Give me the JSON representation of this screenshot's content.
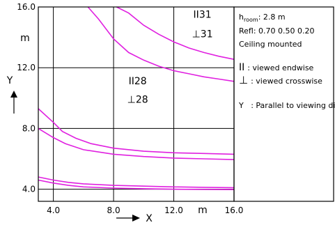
{
  "chart_data": {
    "type": "line",
    "xlabel": "X",
    "ylabel": "Y",
    "x_unit": "m",
    "y_unit": "m",
    "xlim": [
      3.0,
      16.0
    ],
    "ylim": [
      3.2,
      16.0
    ],
    "x_ticks": [
      "4.0",
      "8.0",
      "12.0",
      "16.0"
    ],
    "y_ticks": [
      "4.0",
      "8.0",
      "12.0",
      "16.0"
    ],
    "grid": true,
    "line_color": "#e020e0",
    "series": [
      {
        "points": [
          [
            6.3,
            16.0
          ],
          [
            7.0,
            15.2
          ],
          [
            8.0,
            13.9
          ],
          [
            9.0,
            13.0
          ],
          [
            10.0,
            12.5
          ],
          [
            11.0,
            12.1
          ],
          [
            12.0,
            11.8
          ],
          [
            13.0,
            11.6
          ],
          [
            14.0,
            11.4
          ],
          [
            15.0,
            11.25
          ],
          [
            16.0,
            11.1
          ]
        ]
      },
      {
        "points": [
          [
            8.2,
            16.0
          ],
          [
            9.0,
            15.6
          ],
          [
            10.0,
            14.8
          ],
          [
            11.0,
            14.2
          ],
          [
            12.0,
            13.7
          ],
          [
            13.0,
            13.3
          ],
          [
            14.0,
            13.0
          ],
          [
            15.0,
            12.75
          ],
          [
            16.0,
            12.55
          ]
        ]
      },
      {
        "points": [
          [
            3.0,
            9.3
          ],
          [
            4.0,
            8.4
          ],
          [
            4.6,
            7.8
          ],
          [
            5.5,
            7.35
          ],
          [
            6.5,
            7.0
          ],
          [
            8.0,
            6.7
          ],
          [
            10.0,
            6.5
          ],
          [
            12.0,
            6.4
          ],
          [
            14.0,
            6.35
          ],
          [
            16.0,
            6.3
          ]
        ]
      },
      {
        "points": [
          [
            3.0,
            8.0
          ],
          [
            4.0,
            7.4
          ],
          [
            4.8,
            7.0
          ],
          [
            6.0,
            6.6
          ],
          [
            8.0,
            6.3
          ],
          [
            10.0,
            6.15
          ],
          [
            12.0,
            6.05
          ],
          [
            14.0,
            6.0
          ],
          [
            16.0,
            5.95
          ]
        ]
      },
      {
        "points": [
          [
            3.0,
            4.8
          ],
          [
            4.0,
            4.6
          ],
          [
            5.0,
            4.45
          ],
          [
            6.0,
            4.35
          ],
          [
            8.0,
            4.25
          ],
          [
            10.0,
            4.2
          ],
          [
            12.0,
            4.15
          ],
          [
            14.0,
            4.12
          ],
          [
            16.0,
            4.1
          ]
        ]
      },
      {
        "points": [
          [
            3.0,
            4.6
          ],
          [
            4.0,
            4.4
          ],
          [
            5.0,
            4.25
          ],
          [
            6.0,
            4.15
          ],
          [
            8.0,
            4.07
          ],
          [
            10.0,
            4.03
          ],
          [
            12.0,
            4.0
          ],
          [
            14.0,
            3.98
          ],
          [
            16.0,
            3.97
          ]
        ]
      }
    ],
    "annotations": [
      {
        "sym": "II",
        "text": "31",
        "x": 13.9,
        "y": 15.3
      },
      {
        "sym": "⊥",
        "text": "31",
        "x": 13.9,
        "y": 14.0
      },
      {
        "sym": "II",
        "text": "28",
        "x": 9.6,
        "y": 10.9
      },
      {
        "sym": "⊥",
        "text": "28",
        "x": 9.6,
        "y": 9.7
      }
    ]
  },
  "info": {
    "h_label": "h",
    "h_sub": "room",
    "h_value": ": 2.8 m",
    "refl": "Refl: 0.70 0.50 0.20",
    "mount": "Ceiling mounted",
    "endwise_sym": "II",
    "endwise": ": viewed endwise",
    "crosswise_sym": "⊥",
    "crosswise": ": viewed crosswise",
    "y_note": "Y   : Parallel to viewing dir."
  }
}
